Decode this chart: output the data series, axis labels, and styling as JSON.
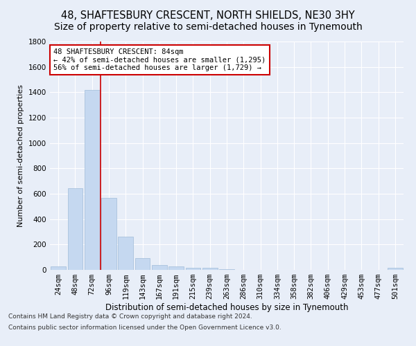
{
  "title": "48, SHAFTESBURY CRESCENT, NORTH SHIELDS, NE30 3HY",
  "subtitle": "Size of property relative to semi-detached houses in Tynemouth",
  "xlabel": "Distribution of semi-detached houses by size in Tynemouth",
  "ylabel": "Number of semi-detached properties",
  "categories": [
    "24sqm",
    "48sqm",
    "72sqm",
    "96sqm",
    "119sqm",
    "143sqm",
    "167sqm",
    "191sqm",
    "215sqm",
    "239sqm",
    "263sqm",
    "286sqm",
    "310sqm",
    "334sqm",
    "358sqm",
    "382sqm",
    "406sqm",
    "429sqm",
    "453sqm",
    "477sqm",
    "501sqm"
  ],
  "values": [
    30,
    645,
    1420,
    565,
    260,
    95,
    38,
    25,
    18,
    18,
    5,
    0,
    0,
    0,
    0,
    0,
    0,
    0,
    0,
    0,
    18
  ],
  "bar_color": "#c5d8f0",
  "bar_edge_color": "#a0bcd8",
  "vline_x_index": 2,
  "annotation_text_line1": "48 SHAFTESBURY CRESCENT: 84sqm",
  "annotation_text_line2": "← 42% of semi-detached houses are smaller (1,295)",
  "annotation_text_line3": "56% of semi-detached houses are larger (1,729) →",
  "annotation_box_color": "#ffffff",
  "annotation_box_edge": "#cc0000",
  "vline_color": "#cc0000",
  "background_color": "#e8eef8",
  "plot_background": "#e8eef8",
  "ylim": [
    0,
    1800
  ],
  "yticks": [
    0,
    200,
    400,
    600,
    800,
    1000,
    1200,
    1400,
    1600,
    1800
  ],
  "footer_line1": "Contains HM Land Registry data © Crown copyright and database right 2024.",
  "footer_line2": "Contains public sector information licensed under the Open Government Licence v3.0.",
  "title_fontsize": 10.5,
  "xlabel_fontsize": 8.5,
  "ylabel_fontsize": 8,
  "tick_fontsize": 7.5,
  "annotation_fontsize": 7.5,
  "footer_fontsize": 6.5
}
